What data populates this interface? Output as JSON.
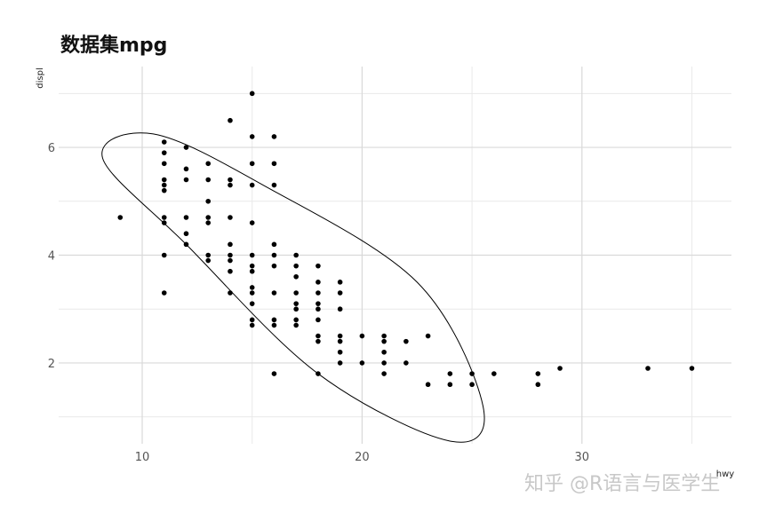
{
  "chart_data": {
    "type": "scatter",
    "title": "数据集mpg",
    "xlabel": "hwy",
    "ylabel": "displ",
    "xlim": [
      6.2,
      36.8
    ],
    "ylim": [
      0.5,
      7.5
    ],
    "x_ticks": [
      10,
      20,
      30
    ],
    "y_ticks": [
      2,
      4,
      6
    ],
    "grid": true,
    "legend": "none",
    "point_color": "#000000",
    "ellipse_color": "#000000",
    "grid_color": "#d9d9d9",
    "ellipse": {
      "center": [
        16.8,
        3.5
      ],
      "points": [
        [
          8.2,
          5.8
        ],
        [
          10.5,
          6.25
        ],
        [
          15.5,
          5.3
        ],
        [
          22.5,
          3.5
        ],
        [
          25.5,
          1.2
        ],
        [
          24.0,
          0.55
        ],
        [
          18.0,
          1.8
        ],
        [
          12.0,
          4.2
        ]
      ]
    },
    "points": [
      [
        9,
        4.7
      ],
      [
        11,
        6.1
      ],
      [
        11,
        5.9
      ],
      [
        11,
        5.7
      ],
      [
        11,
        5.4
      ],
      [
        11,
        5.3
      ],
      [
        11,
        5.2
      ],
      [
        11,
        4.7
      ],
      [
        11,
        4.6
      ],
      [
        11,
        4.0
      ],
      [
        11,
        3.3
      ],
      [
        12,
        6.0
      ],
      [
        12,
        5.6
      ],
      [
        12,
        5.4
      ],
      [
        12,
        4.7
      ],
      [
        12,
        4.4
      ],
      [
        12,
        4.2
      ],
      [
        13,
        5.7
      ],
      [
        13,
        5.4
      ],
      [
        13,
        5.0
      ],
      [
        13,
        4.7
      ],
      [
        13,
        4.6
      ],
      [
        13,
        4.0
      ],
      [
        13,
        3.9
      ],
      [
        14,
        6.5
      ],
      [
        14,
        5.4
      ],
      [
        14,
        5.3
      ],
      [
        14,
        4.7
      ],
      [
        14,
        4.2
      ],
      [
        14,
        4.0
      ],
      [
        14,
        3.9
      ],
      [
        14,
        3.7
      ],
      [
        14,
        3.3
      ],
      [
        15,
        7.0
      ],
      [
        15,
        6.2
      ],
      [
        15,
        5.7
      ],
      [
        15,
        5.3
      ],
      [
        15,
        4.6
      ],
      [
        15,
        4.0
      ],
      [
        15,
        3.8
      ],
      [
        15,
        3.7
      ],
      [
        15,
        3.4
      ],
      [
        15,
        3.3
      ],
      [
        15,
        3.1
      ],
      [
        15,
        2.8
      ],
      [
        15,
        2.7
      ],
      [
        16,
        6.2
      ],
      [
        16,
        5.7
      ],
      [
        16,
        5.3
      ],
      [
        16,
        4.2
      ],
      [
        16,
        4.0
      ],
      [
        16,
        3.8
      ],
      [
        16,
        3.3
      ],
      [
        16,
        2.8
      ],
      [
        16,
        2.7
      ],
      [
        16,
        1.8
      ],
      [
        17,
        4.0
      ],
      [
        17,
        3.8
      ],
      [
        17,
        3.6
      ],
      [
        17,
        3.3
      ],
      [
        17,
        3.1
      ],
      [
        17,
        3.0
      ],
      [
        17,
        2.8
      ],
      [
        17,
        2.7
      ],
      [
        18,
        3.8
      ],
      [
        18,
        3.5
      ],
      [
        18,
        3.3
      ],
      [
        18,
        3.1
      ],
      [
        18,
        3.0
      ],
      [
        18,
        2.8
      ],
      [
        18,
        2.5
      ],
      [
        18,
        2.4
      ],
      [
        18,
        1.8
      ],
      [
        19,
        3.5
      ],
      [
        19,
        3.3
      ],
      [
        19,
        3.0
      ],
      [
        19,
        2.5
      ],
      [
        19,
        2.4
      ],
      [
        19,
        2.2
      ],
      [
        19,
        2.0
      ],
      [
        20,
        2.5
      ],
      [
        20,
        2.0
      ],
      [
        21,
        2.5
      ],
      [
        21,
        2.4
      ],
      [
        21,
        2.2
      ],
      [
        21,
        2.0
      ],
      [
        21,
        1.8
      ],
      [
        22,
        2.4
      ],
      [
        22,
        2.0
      ],
      [
        23,
        2.5
      ],
      [
        23,
        1.6
      ],
      [
        24,
        1.8
      ],
      [
        24,
        1.6
      ],
      [
        25,
        1.8
      ],
      [
        25,
        1.6
      ],
      [
        26,
        1.8
      ],
      [
        28,
        1.8
      ],
      [
        28,
        1.6
      ],
      [
        29,
        1.9
      ],
      [
        33,
        1.9
      ],
      [
        35,
        1.9
      ]
    ]
  },
  "watermark": {
    "text": "知乎 @R语言与医学生"
  }
}
